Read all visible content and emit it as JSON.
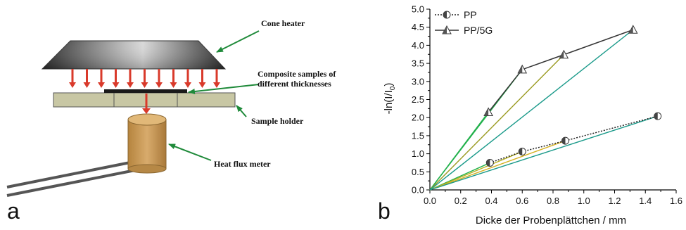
{
  "panel_a": {
    "letter": "a",
    "labels": {
      "cone_heater": "Cone heater",
      "composite_line1": "Composite samples of",
      "composite_line2": "different thicknesses",
      "sample_holder": "Sample holder",
      "heat_flux_meter": "Heat flux meter"
    },
    "colors": {
      "arrow": "#d93a2b",
      "pointer": "#1f8a3a",
      "holder": "#c8c7a4",
      "meter": "#c99a5a"
    }
  },
  "panel_b": {
    "letter": "b",
    "chart_data": {
      "type": "line",
      "xlabel": "Dicke der Probenplättchen / mm",
      "ylabel_main": "-ln(I/I",
      "ylabel_sub": "0",
      "ylabel_tail": ")",
      "xlim": [
        0.0,
        1.6
      ],
      "ylim": [
        0.0,
        5.0
      ],
      "xticks": [
        "0.0",
        "0.2",
        "0.4",
        "0.6",
        "0.8",
        "1.0",
        "1.2",
        "1.4",
        "1.6"
      ],
      "yticks": [
        "0.0",
        "0.5",
        "1.0",
        "1.5",
        "2.0",
        "2.5",
        "3.0",
        "3.5",
        "4.0",
        "4.5",
        "5.0"
      ],
      "legend_position": "top-left",
      "series": [
        {
          "name": "PP",
          "marker": "circle-half",
          "line": "dotted",
          "color": "#222222",
          "x": [
            0.39,
            0.6,
            0.88,
            1.48
          ],
          "y": [
            0.75,
            1.06,
            1.36,
            2.04
          ]
        },
        {
          "name": "PP/5G",
          "marker": "triangle-half",
          "line": "solid",
          "color": "#333333",
          "x": [
            0.38,
            0.6,
            0.87,
            1.32
          ],
          "y": [
            2.15,
            3.33,
            3.74,
            4.43
          ]
        }
      ],
      "fit_lines": [
        {
          "color": "#22b14c",
          "x": [
            0.0,
            0.39
          ],
          "y": [
            0.0,
            0.75
          ]
        },
        {
          "color": "#b5b020",
          "x": [
            0.0,
            0.6
          ],
          "y": [
            0.0,
            1.06
          ]
        },
        {
          "color": "#d4b020",
          "x": [
            0.0,
            0.88
          ],
          "y": [
            0.0,
            1.36
          ]
        },
        {
          "color": "#1a9a8a",
          "x": [
            0.0,
            1.48
          ],
          "y": [
            0.0,
            2.04
          ]
        },
        {
          "color": "#22b14c",
          "x": [
            0.0,
            0.38
          ],
          "y": [
            0.0,
            2.15
          ]
        },
        {
          "color": "#22b14c",
          "x": [
            0.0,
            0.6
          ],
          "y": [
            0.0,
            3.33
          ]
        },
        {
          "color": "#9a9a20",
          "x": [
            0.0,
            0.87
          ],
          "y": [
            0.0,
            3.74
          ]
        },
        {
          "color": "#1a9a8a",
          "x": [
            0.0,
            1.32
          ],
          "y": [
            0.0,
            4.43
          ]
        }
      ]
    }
  }
}
